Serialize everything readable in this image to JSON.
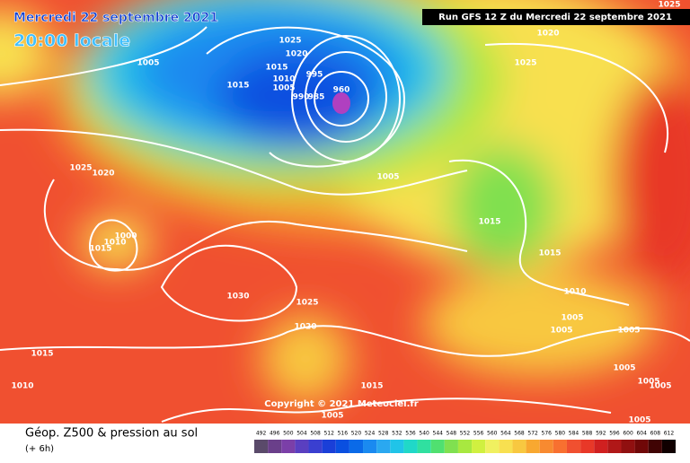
{
  "header": {
    "date": "Mercredi 22 septembre 2021",
    "time": "20:00 locale",
    "run": "Run GFS 12 Z du Mercredi 22 septembre 2021"
  },
  "copyright": "Copyright © 2021 Meteociel.fr",
  "footer": {
    "title": "Géop. Z500 & pression au sol",
    "step": "(+ 6h)"
  },
  "isobars": {
    "labels": [
      "1025",
      "1025",
      "1020",
      "1005",
      "1015",
      "1010",
      "1005",
      "995",
      "990",
      "985",
      "960",
      "1015",
      "1020",
      "1025",
      "1025",
      "1020",
      "1005",
      "1015",
      "1015",
      "1015",
      "1010",
      "1000",
      "1030",
      "1025",
      "1020",
      "1010",
      "1005",
      "1005",
      "1005",
      "1015",
      "1010",
      "1015",
      "1005",
      "1005",
      "1005",
      "1005",
      "1005"
    ]
  },
  "colorbar": {
    "values": [
      492,
      496,
      500,
      504,
      508,
      512,
      516,
      520,
      524,
      528,
      532,
      536,
      540,
      544,
      548,
      552,
      556,
      560,
      564,
      568,
      572,
      576,
      580,
      584,
      588,
      592,
      596,
      600,
      604,
      608,
      612
    ],
    "colors": [
      "#5a4a6a",
      "#6a3f8a",
      "#7b3fa8",
      "#5a3fc0",
      "#3a3fd0",
      "#1a3fd8",
      "#0a4fe0",
      "#0a6ae8",
      "#1a8af0",
      "#2aa8f0",
      "#20c4e8",
      "#20d8c8",
      "#30e0a0",
      "#50e070",
      "#80e050",
      "#a8e840",
      "#d0f040",
      "#f0f060",
      "#f8e050",
      "#f8c840",
      "#f8a830",
      "#f88a30",
      "#f87030",
      "#f05030",
      "#e83828",
      "#d02020",
      "#b01818",
      "#901010",
      "#700808",
      "#400404",
      "#100000"
    ]
  }
}
